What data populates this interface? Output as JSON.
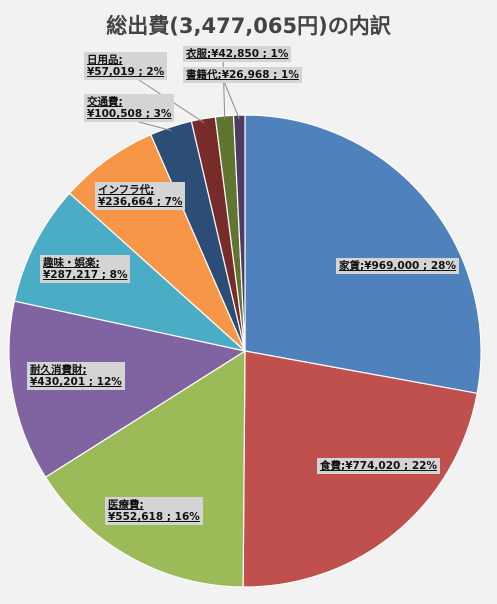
{
  "chart_data": {
    "type": "pie",
    "title": "総出費(3,477,065円)の内訳",
    "slices": [
      {
        "name": "家賃",
        "value": 969000,
        "amount_label": "¥969,000 ; 28%",
        "percent": 28,
        "color": "#4f81bd"
      },
      {
        "name": "食費",
        "value": 774020,
        "amount_label": "¥774,020 ; 22%",
        "percent": 22,
        "color": "#c0504d"
      },
      {
        "name": "医療費",
        "value": 552618,
        "amount_label": "¥552,618 ; 16%",
        "percent": 16,
        "color": "#9bbb59"
      },
      {
        "name": "耐久消費財",
        "value": 430201,
        "amount_label": "¥430,201 ; 12%",
        "percent": 12,
        "color": "#8064a2"
      },
      {
        "name": "趣味・娯楽",
        "value": 287217,
        "amount_label": "¥287,217 ; 8%",
        "percent": 8,
        "color": "#4bacc6"
      },
      {
        "name": "インフラ代",
        "value": 236664,
        "amount_label": "¥236,664 ; 7%",
        "percent": 7,
        "color": "#f79646"
      },
      {
        "name": "交通費",
        "value": 100508,
        "amount_label": "¥100,508 ; 3%",
        "percent": 3,
        "color": "#2c4d75"
      },
      {
        "name": "日用品",
        "value": 57019,
        "amount_label": "¥57,019 ; 2%",
        "percent": 2,
        "color": "#772c2a"
      },
      {
        "name": "衣服",
        "value": 42850,
        "amount_label": "¥42,850 ; 1%",
        "percent": 1,
        "color": "#5f7530"
      },
      {
        "name": "書籍代",
        "value": 26968,
        "amount_label": "¥26,968 ; 1%",
        "percent": 1,
        "color": "#4d3b62"
      }
    ]
  }
}
